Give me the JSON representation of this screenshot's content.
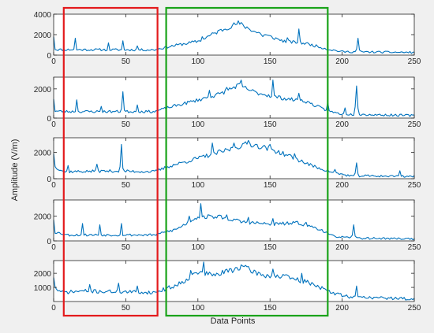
{
  "chart_data": {
    "type": "line",
    "xlabel": "Data Points",
    "ylabel": "Amplitude (V/m)",
    "line_color": "#0072BD",
    "highlight_colors": {
      "red_box": "#e31a1c",
      "green_box": "#1aa31a"
    },
    "highlights": [
      {
        "color": "red",
        "x_range": [
          7,
          72
        ]
      },
      {
        "color": "green",
        "x_range": [
          78,
          190
        ]
      }
    ],
    "panels": [
      {
        "ylim": [
          0,
          4000
        ],
        "yticks": [
          0,
          2000,
          4000
        ],
        "xlim": [
          0,
          250
        ],
        "xticks": [
          0,
          50,
          100,
          150,
          200,
          250
        ],
        "baseline": 480,
        "noise": 280,
        "seed": 11,
        "envelope": [
          [
            0,
            500
          ],
          [
            10,
            500
          ],
          [
            70,
            480
          ],
          [
            80,
            800
          ],
          [
            100,
            1300
          ],
          [
            115,
            2300
          ],
          [
            128,
            3050
          ],
          [
            140,
            2200
          ],
          [
            160,
            1300
          ],
          [
            175,
            1100
          ],
          [
            190,
            550
          ],
          [
            200,
            300
          ],
          [
            250,
            230
          ]
        ],
        "peaks": [
          [
            0,
            1800
          ],
          [
            15,
            1650
          ],
          [
            38,
            1200
          ],
          [
            48,
            1400
          ],
          [
            58,
            900
          ],
          [
            103,
            1800
          ],
          [
            118,
            2500
          ],
          [
            128,
            3350
          ],
          [
            145,
            1800
          ],
          [
            162,
            1700
          ],
          [
            170,
            2550
          ],
          [
            180,
            850
          ],
          [
            211,
            1650
          ]
        ]
      },
      {
        "ylim": [
          0,
          2800
        ],
        "yticks": [
          0,
          2000
        ],
        "xlim": [
          0,
          250
        ],
        "xticks": [
          0,
          50,
          100,
          150,
          200,
          250
        ],
        "baseline": 350,
        "noise": 230,
        "seed": 23,
        "envelope": [
          [
            0,
            450
          ],
          [
            10,
            420
          ],
          [
            70,
            420
          ],
          [
            80,
            700
          ],
          [
            100,
            1200
          ],
          [
            115,
            1600
          ],
          [
            128,
            2200
          ],
          [
            140,
            1700
          ],
          [
            160,
            1300
          ],
          [
            175,
            1100
          ],
          [
            190,
            450
          ],
          [
            200,
            250
          ],
          [
            250,
            150
          ]
        ],
        "peaks": [
          [
            0,
            1300
          ],
          [
            16,
            1250
          ],
          [
            33,
            800
          ],
          [
            48,
            1800
          ],
          [
            58,
            900
          ],
          [
            108,
            1900
          ],
          [
            120,
            2100
          ],
          [
            130,
            2600
          ],
          [
            152,
            2600
          ],
          [
            170,
            1700
          ],
          [
            190,
            1100
          ],
          [
            202,
            700
          ],
          [
            210,
            2200
          ]
        ]
      },
      {
        "ylim": [
          0,
          3100
        ],
        "yticks": [
          0,
          2000
        ],
        "xlim": [
          0,
          250
        ],
        "xticks": [
          0,
          50,
          100,
          150,
          200,
          250
        ],
        "baseline": 450,
        "noise": 260,
        "seed": 37,
        "envelope": [
          [
            0,
            900
          ],
          [
            8,
            500
          ],
          [
            40,
            550
          ],
          [
            70,
            500
          ],
          [
            80,
            900
          ],
          [
            100,
            1500
          ],
          [
            120,
            2100
          ],
          [
            135,
            2600
          ],
          [
            150,
            2200
          ],
          [
            165,
            1600
          ],
          [
            180,
            900
          ],
          [
            195,
            400
          ],
          [
            205,
            200
          ],
          [
            250,
            150
          ]
        ],
        "peaks": [
          [
            0,
            1900
          ],
          [
            10,
            1000
          ],
          [
            30,
            1100
          ],
          [
            47,
            2600
          ],
          [
            110,
            2700
          ],
          [
            125,
            2700
          ],
          [
            135,
            2900
          ],
          [
            150,
            2600
          ],
          [
            167,
            1900
          ],
          [
            195,
            700
          ],
          [
            210,
            1200
          ],
          [
            240,
            600
          ]
        ]
      },
      {
        "ylim": [
          0,
          3300
        ],
        "yticks": [
          0,
          2000
        ],
        "xlim": [
          0,
          250
        ],
        "xticks": [
          0,
          50,
          100,
          150,
          200,
          250
        ],
        "baseline": 400,
        "noise": 250,
        "seed": 53,
        "envelope": [
          [
            0,
            700
          ],
          [
            10,
            450
          ],
          [
            70,
            450
          ],
          [
            85,
            900
          ],
          [
            100,
            1900
          ],
          [
            115,
            1900
          ],
          [
            130,
            1500
          ],
          [
            150,
            1300
          ],
          [
            170,
            1400
          ],
          [
            185,
            900
          ],
          [
            192,
            400
          ],
          [
            205,
            200
          ],
          [
            250,
            150
          ]
        ],
        "peaks": [
          [
            0,
            1700
          ],
          [
            20,
            1400
          ],
          [
            32,
            1300
          ],
          [
            47,
            1400
          ],
          [
            94,
            2000
          ],
          [
            102,
            3000
          ],
          [
            120,
            2100
          ],
          [
            135,
            1900
          ],
          [
            152,
            1800
          ],
          [
            175,
            1500
          ],
          [
            208,
            1300
          ]
        ]
      },
      {
        "ylim": [
          0,
          2900
        ],
        "yticks": [
          1000,
          2000
        ],
        "xlim": [
          0,
          250
        ],
        "xticks": [
          0,
          50,
          100,
          150,
          200,
          250
        ],
        "baseline": 450,
        "noise": 300,
        "seed": 71,
        "envelope": [
          [
            0,
            1000
          ],
          [
            5,
            600
          ],
          [
            20,
            700
          ],
          [
            70,
            600
          ],
          [
            85,
            1100
          ],
          [
            100,
            2000
          ],
          [
            112,
            1800
          ],
          [
            130,
            2400
          ],
          [
            145,
            1800
          ],
          [
            160,
            1700
          ],
          [
            180,
            1200
          ],
          [
            192,
            600
          ],
          [
            205,
            300
          ],
          [
            250,
            150
          ]
        ],
        "peaks": [
          [
            0,
            1700
          ],
          [
            25,
            1200
          ],
          [
            45,
            1300
          ],
          [
            58,
            1100
          ],
          [
            95,
            2200
          ],
          [
            104,
            2800
          ],
          [
            130,
            2600
          ],
          [
            152,
            2300
          ],
          [
            172,
            2000
          ],
          [
            210,
            1100
          ]
        ]
      }
    ]
  }
}
